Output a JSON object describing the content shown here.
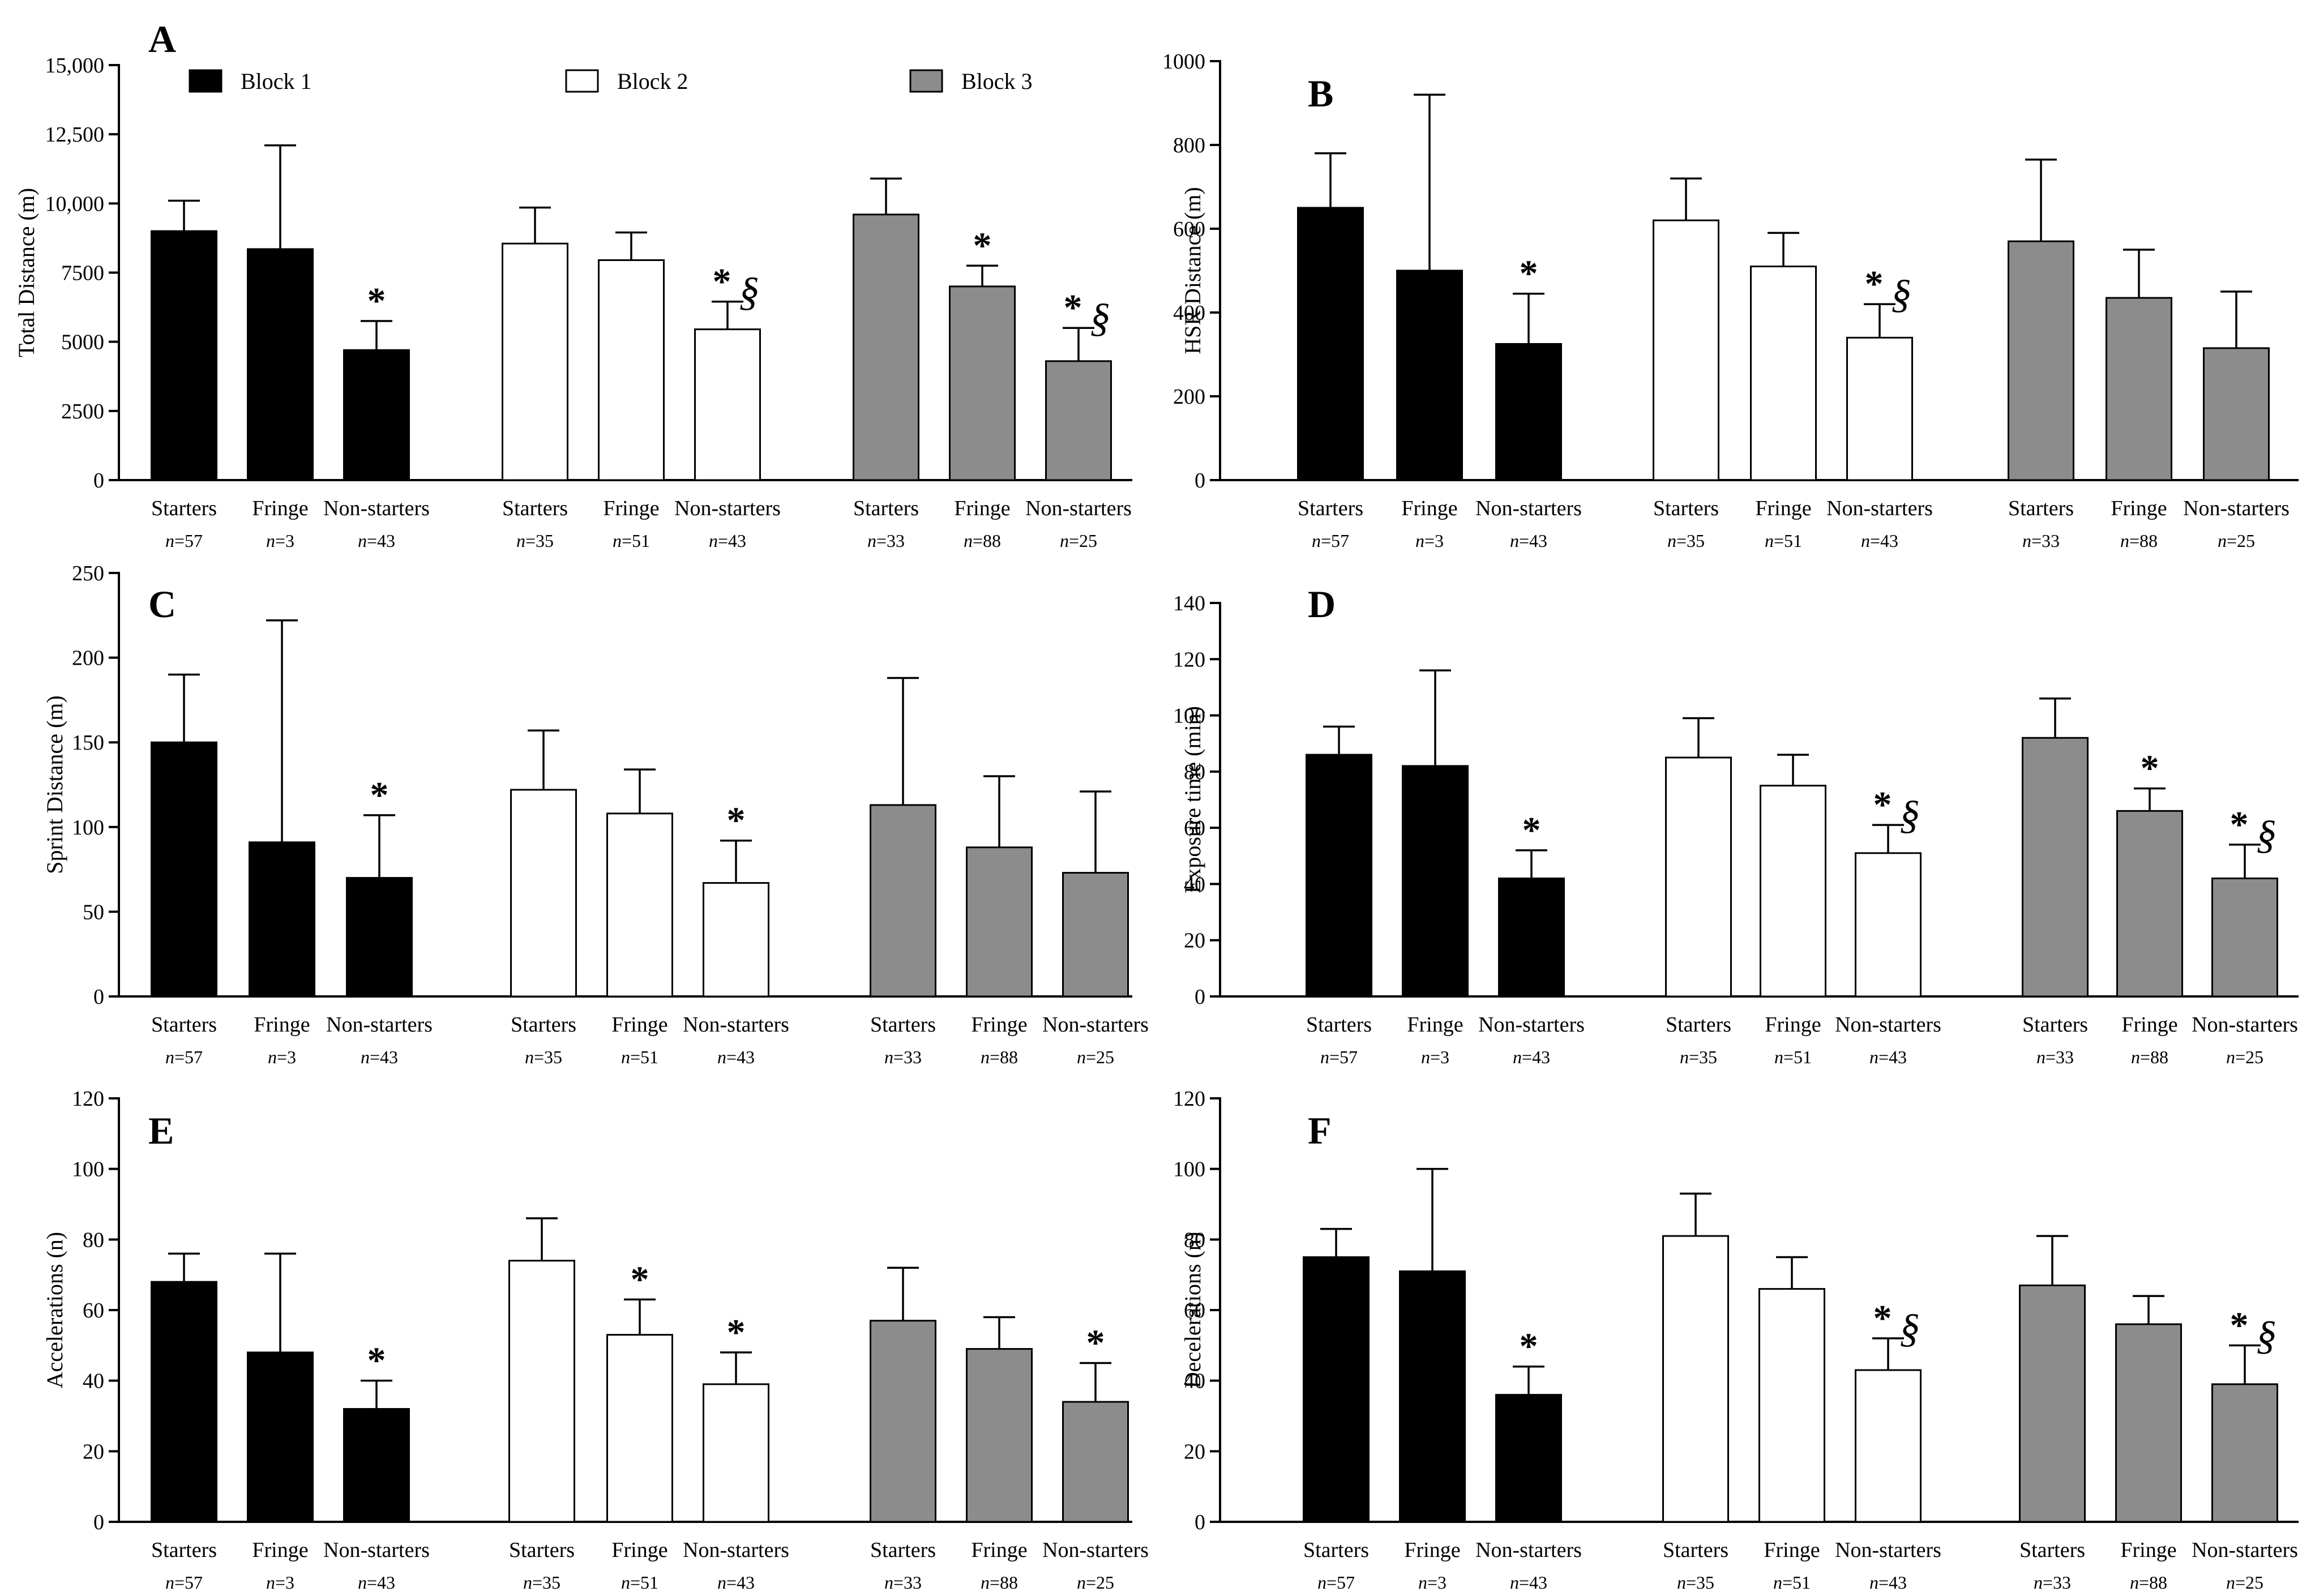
{
  "figure_colors": {
    "block1": "#000000",
    "block2": "#ffffff",
    "block3": "#8c8c8c",
    "axis": "#000000"
  },
  "legend": [
    {
      "label": "Block 1",
      "key": "block1"
    },
    {
      "label": "Block 2",
      "key": "block2"
    },
    {
      "label": "Block 3",
      "key": "block3"
    }
  ],
  "chart_data": [
    {
      "type": "bar",
      "panel": "A",
      "ylabel": "Total Distance (m)",
      "ylim": [
        0,
        15000
      ],
      "yticks": [
        0,
        2500,
        5000,
        7500,
        10000,
        12500,
        15000
      ],
      "ytick_labels": [
        "0",
        "2500",
        "5000",
        "7500",
        "10,000",
        "12,500",
        "15,000"
      ],
      "groups": [
        {
          "name": "Block 1",
          "key": "block1",
          "bars": [
            {
              "category": "Starters",
              "n": "n=57",
              "value": 9000,
              "error": 1100,
              "mark": ""
            },
            {
              "category": "Fringe",
              "n": "n=3",
              "value": 8350,
              "error": 3750,
              "mark": ""
            },
            {
              "category": "Non-starters",
              "n": "n=43",
              "value": 4700,
              "error": 1050,
              "mark": "*"
            }
          ]
        },
        {
          "name": "Block 2",
          "key": "block2",
          "bars": [
            {
              "category": "Starters",
              "n": "n=35",
              "value": 8550,
              "error": 1300,
              "mark": ""
            },
            {
              "category": "Fringe",
              "n": "n=51",
              "value": 7950,
              "error": 1000,
              "mark": ""
            },
            {
              "category": "Non-starters",
              "n": "n=43",
              "value": 5450,
              "error": 1000,
              "mark": "*§"
            }
          ]
        },
        {
          "name": "Block 3",
          "key": "block3",
          "bars": [
            {
              "category": "Starters",
              "n": "n=33",
              "value": 9600,
              "error": 1300,
              "mark": ""
            },
            {
              "category": "Fringe",
              "n": "n=88",
              "value": 7000,
              "error": 750,
              "mark": "*"
            },
            {
              "category": "Non-starters",
              "n": "n=25",
              "value": 4300,
              "error": 1200,
              "mark": "*§"
            }
          ]
        }
      ]
    },
    {
      "type": "bar",
      "panel": "B",
      "ylabel": "HSR Distance (m)",
      "ylim": [
        0,
        1000
      ],
      "yticks": [
        0,
        200,
        400,
        600,
        800,
        1000
      ],
      "ytick_labels": [
        "0",
        "200",
        "400",
        "600",
        "800",
        "1000"
      ],
      "groups": [
        {
          "name": "Block 1",
          "key": "block1",
          "bars": [
            {
              "category": "Starters",
              "n": "n=57",
              "value": 650,
              "error": 130,
              "mark": ""
            },
            {
              "category": "Fringe",
              "n": "n=3",
              "value": 500,
              "error": 420,
              "mark": ""
            },
            {
              "category": "Non-starters",
              "n": "n=43",
              "value": 325,
              "error": 120,
              "mark": "*"
            }
          ]
        },
        {
          "name": "Block 2",
          "key": "block2",
          "bars": [
            {
              "category": "Starters",
              "n": "n=35",
              "value": 620,
              "error": 100,
              "mark": ""
            },
            {
              "category": "Fringe",
              "n": "n=51",
              "value": 510,
              "error": 80,
              "mark": ""
            },
            {
              "category": "Non-starters",
              "n": "n=43",
              "value": 340,
              "error": 80,
              "mark": "*§"
            }
          ]
        },
        {
          "name": "Block 3",
          "key": "block3",
          "bars": [
            {
              "category": "Starters",
              "n": "n=33",
              "value": 570,
              "error": 195,
              "mark": ""
            },
            {
              "category": "Fringe",
              "n": "n=88",
              "value": 435,
              "error": 115,
              "mark": ""
            },
            {
              "category": "Non-starters",
              "n": "n=25",
              "value": 315,
              "error": 135,
              "mark": ""
            }
          ]
        }
      ]
    },
    {
      "type": "bar",
      "panel": "C",
      "ylabel": "Sprint Distance (m)",
      "ylim": [
        0,
        250
      ],
      "yticks": [
        0,
        50,
        100,
        150,
        200,
        250
      ],
      "ytick_labels": [
        "0",
        "50",
        "100",
        "150",
        "200",
        "250"
      ],
      "groups": [
        {
          "name": "Block 1",
          "key": "block1",
          "bars": [
            {
              "category": "Starters",
              "n": "n=57",
              "value": 150,
              "error": 40,
              "mark": ""
            },
            {
              "category": "Fringe",
              "n": "n=3",
              "value": 91,
              "error": 131,
              "mark": ""
            },
            {
              "category": "Non-starters",
              "n": "n=43",
              "value": 70,
              "error": 37,
              "mark": "*"
            }
          ]
        },
        {
          "name": "Block 2",
          "key": "block2",
          "bars": [
            {
              "category": "Starters",
              "n": "n=35",
              "value": 122,
              "error": 35,
              "mark": ""
            },
            {
              "category": "Fringe",
              "n": "n=51",
              "value": 108,
              "error": 26,
              "mark": ""
            },
            {
              "category": "Non-starters",
              "n": "n=43",
              "value": 67,
              "error": 25,
              "mark": "*"
            }
          ]
        },
        {
          "name": "Block 3",
          "key": "block3",
          "bars": [
            {
              "category": "Starters",
              "n": "n=33",
              "value": 113,
              "error": 75,
              "mark": ""
            },
            {
              "category": "Fringe",
              "n": "n=88",
              "value": 88,
              "error": 42,
              "mark": ""
            },
            {
              "category": "Non-starters",
              "n": "n=25",
              "value": 73,
              "error": 48,
              "mark": ""
            }
          ]
        }
      ]
    },
    {
      "type": "bar",
      "panel": "D",
      "ylabel": "Exposure time (min)",
      "ylim": [
        0,
        140
      ],
      "yticks": [
        0,
        20,
        40,
        60,
        80,
        100,
        120,
        140
      ],
      "ytick_labels": [
        "0",
        "20",
        "40",
        "60",
        "80",
        "100",
        "120",
        "140"
      ],
      "groups": [
        {
          "name": "Block 1",
          "key": "block1",
          "bars": [
            {
              "category": "Starters",
              "n": "n=57",
              "value": 86,
              "error": 10,
              "mark": ""
            },
            {
              "category": "Fringe",
              "n": "n=3",
              "value": 82,
              "error": 34,
              "mark": ""
            },
            {
              "category": "Non-starters",
              "n": "n=43",
              "value": 42,
              "error": 10,
              "mark": "*"
            }
          ]
        },
        {
          "name": "Block 2",
          "key": "block2",
          "bars": [
            {
              "category": "Starters",
              "n": "n=35",
              "value": 85,
              "error": 14,
              "mark": ""
            },
            {
              "category": "Fringe",
              "n": "n=51",
              "value": 75,
              "error": 11,
              "mark": ""
            },
            {
              "category": "Non-starters",
              "n": "n=43",
              "value": 51,
              "error": 10,
              "mark": "*§"
            }
          ]
        },
        {
          "name": "Block 3",
          "key": "block3",
          "bars": [
            {
              "category": "Starters",
              "n": "n=33",
              "value": 92,
              "error": 14,
              "mark": ""
            },
            {
              "category": "Fringe",
              "n": "n=88",
              "value": 66,
              "error": 8,
              "mark": "*"
            },
            {
              "category": "Non-starters",
              "n": "n=25",
              "value": 42,
              "error": 12,
              "mark": "*§"
            }
          ]
        }
      ]
    },
    {
      "type": "bar",
      "panel": "E",
      "ylabel": "Accelerations (n)",
      "ylim": [
        0,
        120
      ],
      "yticks": [
        0,
        20,
        40,
        60,
        80,
        100,
        120
      ],
      "ytick_labels": [
        "0",
        "20",
        "40",
        "60",
        "80",
        "100",
        "120"
      ],
      "groups": [
        {
          "name": "Block 1",
          "key": "block1",
          "bars": [
            {
              "category": "Starters",
              "n": "n=57",
              "value": 68,
              "error": 8,
              "mark": ""
            },
            {
              "category": "Fringe",
              "n": "n=3",
              "value": 48,
              "error": 28,
              "mark": ""
            },
            {
              "category": "Non-starters",
              "n": "n=43",
              "value": 32,
              "error": 8,
              "mark": "*"
            }
          ]
        },
        {
          "name": "Block 2",
          "key": "block2",
          "bars": [
            {
              "category": "Starters",
              "n": "n=35",
              "value": 74,
              "error": 12,
              "mark": ""
            },
            {
              "category": "Fringe",
              "n": "n=51",
              "value": 53,
              "error": 10,
              "mark": "*"
            },
            {
              "category": "Non-starters",
              "n": "n=43",
              "value": 39,
              "error": 9,
              "mark": "*"
            }
          ]
        },
        {
          "name": "Block 3",
          "key": "block3",
          "bars": [
            {
              "category": "Starters",
              "n": "n=33",
              "value": 57,
              "error": 15,
              "mark": ""
            },
            {
              "category": "Fringe",
              "n": "n=88",
              "value": 49,
              "error": 9,
              "mark": ""
            },
            {
              "category": "Non-starters",
              "n": "n=25",
              "value": 34,
              "error": 11,
              "mark": "*"
            }
          ]
        }
      ]
    },
    {
      "type": "bar",
      "panel": "F",
      "ylabel": "Decelerations (n)",
      "ylim": [
        0,
        120
      ],
      "yticks": [
        0,
        20,
        40,
        60,
        80,
        100,
        120
      ],
      "ytick_labels": [
        "0",
        "20",
        "40",
        "60",
        "80",
        "100",
        "120"
      ],
      "groups": [
        {
          "name": "Block 1",
          "key": "block1",
          "bars": [
            {
              "category": "Starters",
              "n": "n=57",
              "value": 75,
              "error": 8,
              "mark": ""
            },
            {
              "category": "Fringe",
              "n": "n=3",
              "value": 71,
              "error": 29,
              "mark": ""
            },
            {
              "category": "Non-starters",
              "n": "n=43",
              "value": 36,
              "error": 8,
              "mark": "*"
            }
          ]
        },
        {
          "name": "Block 2",
          "key": "block2",
          "bars": [
            {
              "category": "Starters",
              "n": "n=35",
              "value": 81,
              "error": 12,
              "mark": ""
            },
            {
              "category": "Fringe",
              "n": "n=51",
              "value": 66,
              "error": 9,
              "mark": ""
            },
            {
              "category": "Non-starters",
              "n": "n=43",
              "value": 43,
              "error": 9,
              "mark": "*§"
            }
          ]
        },
        {
          "name": "Block 3",
          "key": "block3",
          "bars": [
            {
              "category": "Starters",
              "n": "n=33",
              "value": 67,
              "error": 14,
              "mark": ""
            },
            {
              "category": "Fringe",
              "n": "n=88",
              "value": 56,
              "error": 8,
              "mark": ""
            },
            {
              "category": "Non-starters",
              "n": "n=25",
              "value": 39,
              "error": 11,
              "mark": "*§"
            }
          ]
        }
      ]
    }
  ]
}
